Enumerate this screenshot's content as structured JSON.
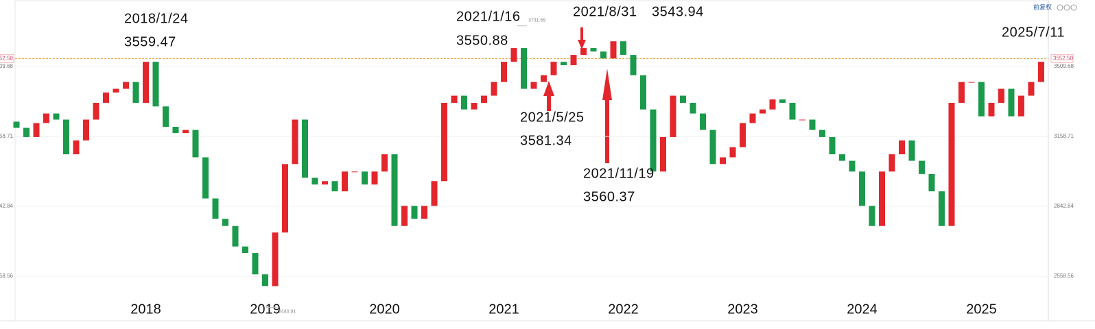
{
  "chart_data": {
    "type": "candlestick",
    "adjust_label": "前复权",
    "categories": [
      null,
      null,
      null,
      null,
      null,
      null,
      null,
      null,
      null,
      null,
      null,
      null,
      null,
      "2018",
      null,
      null,
      null,
      null,
      null,
      null,
      null,
      null,
      null,
      null,
      null,
      "2019",
      null,
      null,
      null,
      null,
      null,
      null,
      null,
      null,
      null,
      null,
      null,
      "2020",
      null,
      null,
      null,
      null,
      null,
      null,
      null,
      null,
      null,
      null,
      null,
      "2021",
      null,
      null,
      null,
      null,
      null,
      null,
      null,
      null,
      null,
      null,
      null,
      "2022",
      null,
      null,
      null,
      null,
      null,
      null,
      null,
      null,
      null,
      null,
      null,
      "2023",
      null,
      null,
      null,
      null,
      null,
      null,
      null,
      null,
      null,
      null,
      null,
      "2024",
      null,
      null,
      null,
      null,
      null,
      null,
      null,
      null,
      null,
      null,
      null,
      "2025",
      null,
      null,
      null,
      null,
      null,
      null
    ],
    "open": [
      3230,
      3200,
      3156,
      3223,
      3270,
      3240,
      3075,
      3140,
      3240,
      3323,
      3375,
      3394,
      3429,
      3323,
      3535,
      3305,
      3205,
      3175,
      3190,
      3061,
      2877,
      2790,
      2760,
      2676,
      2650,
      2566,
      2521,
      2733,
      3030,
      3240,
      2968,
      2938,
      2953,
      2908,
      2996,
      2996,
      2938,
      2996,
      3075,
      2760,
      2845,
      2790,
      2845,
      2953,
      3323,
      3359,
      3290,
      3323,
      3359,
      3429,
      3535,
      3609,
      3394,
      3429,
      3464,
      3535,
      3517,
      3572,
      3609,
      3590,
      3553,
      3646,
      3572,
      3464,
      3290,
      2996,
      3156,
      3359,
      3323,
      3270,
      3190,
      3030,
      3061,
      3108,
      3223,
      3270,
      3290,
      3340,
      3323,
      3240,
      3240,
      3190,
      3156,
      3075,
      3045,
      2996,
      2845,
      2760,
      2996,
      3075,
      3140,
      3045,
      2985,
      2908,
      2760,
      3323,
      3429,
      3429,
      3256,
      3323,
      3394,
      3256,
      3359,
      3429
    ],
    "close": [
      3200,
      3156,
      3223,
      3270,
      3240,
      3075,
      3140,
      3240,
      3323,
      3375,
      3394,
      3429,
      3323,
      3535,
      3305,
      3205,
      3175,
      3190,
      3061,
      2877,
      2790,
      2760,
      2676,
      2650,
      2566,
      2521,
      2733,
      3030,
      3240,
      2968,
      2938,
      2953,
      2908,
      2996,
      2996,
      2938,
      2996,
      3075,
      2760,
      2845,
      2790,
      2845,
      2953,
      3323,
      3359,
      3290,
      3323,
      3359,
      3429,
      3535,
      3609,
      3394,
      3429,
      3464,
      3535,
      3517,
      3572,
      3609,
      3590,
      3553,
      3646,
      3572,
      3464,
      3290,
      2996,
      3156,
      3359,
      3323,
      3270,
      3190,
      3030,
      3061,
      3108,
      3223,
      3270,
      3290,
      3340,
      3323,
      3240,
      3240,
      3190,
      3156,
      3075,
      3045,
      2996,
      2845,
      2760,
      2996,
      3075,
      3140,
      3045,
      2985,
      2908,
      2760,
      3323,
      3429,
      3429,
      3256,
      3323,
      3394,
      3256,
      3359,
      3429,
      3535
    ],
    "up_color": "#e3262c",
    "down_color": "#1b9a4b",
    "log_scale": true,
    "ylim": [
      2400,
      3880
    ],
    "yticks": [
      2558.56,
      2842.84,
      3158.71,
      3509.68
    ],
    "grid": true,
    "reference_line": {
      "value": 3552.5,
      "label": "3552.50",
      "color": "#e8a030"
    },
    "max_price": 3731.69,
    "min_price": 2440.91,
    "annotations": [
      {
        "date": "2018/1/24",
        "price": 3559.47
      },
      {
        "date": "2021/1/16",
        "price": 3550.88
      },
      {
        "date": "2021/8/31",
        "price": 3543.94
      },
      {
        "date": "2021/5/25",
        "price": 3581.34
      },
      {
        "date": "2021/11/19",
        "price": 3560.37
      },
      {
        "date": "2025/7/11"
      }
    ]
  }
}
